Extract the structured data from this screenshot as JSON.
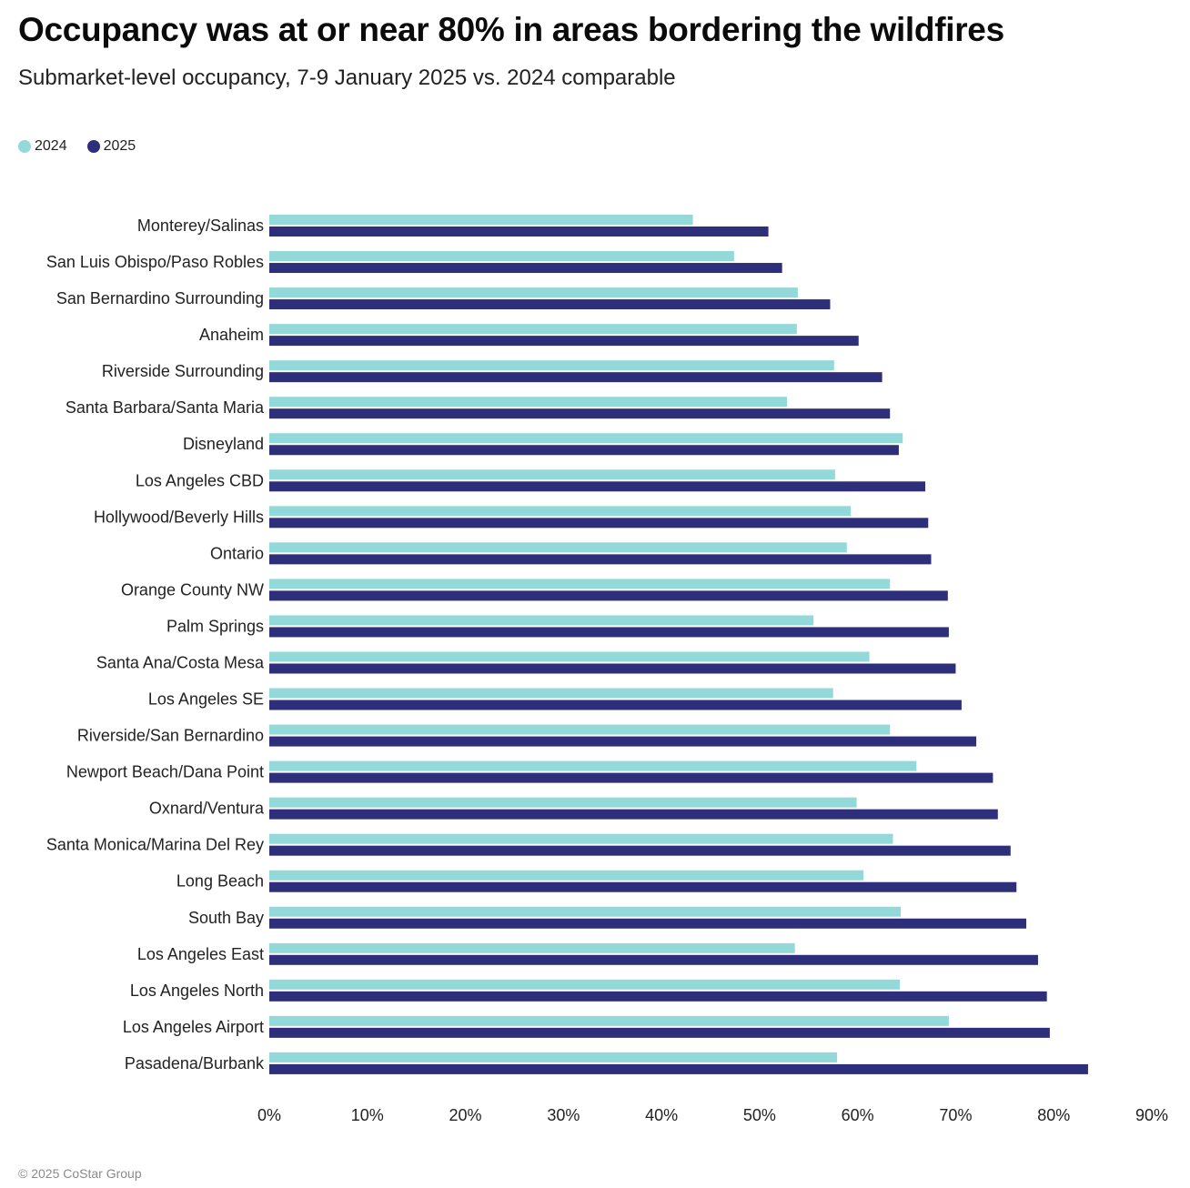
{
  "title": "Occupancy was at or near 80% in areas bordering the wildfires",
  "subtitle": "Submarket-level occupancy, 7-9 January 2025 vs. 2024 comparable",
  "footer": "© 2025 CoStar Group",
  "colors": {
    "series_2024": "#94d9da",
    "series_2025": "#2d2f7a"
  },
  "chart_data": {
    "type": "bar",
    "orientation": "horizontal",
    "title": "Occupancy was at or near 80% in areas bordering the wildfires",
    "subtitle": "Submarket-level occupancy, 7-9 January 2025 vs. 2024 comparable",
    "xlim": [
      0,
      90
    ],
    "x_ticks": [
      0,
      10,
      20,
      30,
      40,
      50,
      60,
      70,
      80,
      90
    ],
    "x_tick_labels": [
      "0%",
      "10%",
      "20%",
      "30%",
      "40%",
      "50%",
      "60%",
      "70%",
      "80%",
      "90%"
    ],
    "grid": false,
    "legend_position": "top-left",
    "categories": [
      "Monterey/Salinas",
      "San Luis Obispo/Paso Robles",
      "San Bernardino Surrounding",
      "Anaheim",
      "Riverside Surrounding",
      "Santa Barbara/Santa Maria",
      "Disneyland",
      "Los Angeles CBD",
      "Hollywood/Beverly Hills",
      "Ontario",
      "Orange County NW",
      "Palm Springs",
      "Santa Ana/Costa Mesa",
      "Los Angeles  SE",
      "Riverside/San Bernardino",
      "Newport Beach/Dana Point",
      "Oxnard/Ventura",
      "Santa Monica/Marina Del Rey",
      "Long Beach",
      "South Bay",
      "Los Angeles East",
      "Los Angeles North",
      "Los Angeles Airport",
      "Pasadena/Burbank"
    ],
    "series": [
      {
        "name": "2024",
        "values": [
          43.2,
          47.4,
          53.9,
          53.8,
          57.6,
          52.8,
          64.6,
          57.7,
          59.3,
          58.9,
          63.3,
          55.5,
          61.2,
          57.5,
          63.3,
          66.0,
          59.9,
          63.6,
          60.6,
          64.4,
          53.6,
          64.3,
          69.3,
          57.9
        ]
      },
      {
        "name": "2025",
        "values": [
          50.9,
          52.3,
          57.2,
          60.1,
          62.5,
          63.3,
          64.2,
          66.9,
          67.2,
          67.5,
          69.2,
          69.3,
          70.0,
          70.6,
          72.1,
          73.8,
          74.3,
          75.6,
          76.2,
          77.2,
          78.4,
          79.3,
          79.6,
          83.5
        ]
      }
    ]
  }
}
